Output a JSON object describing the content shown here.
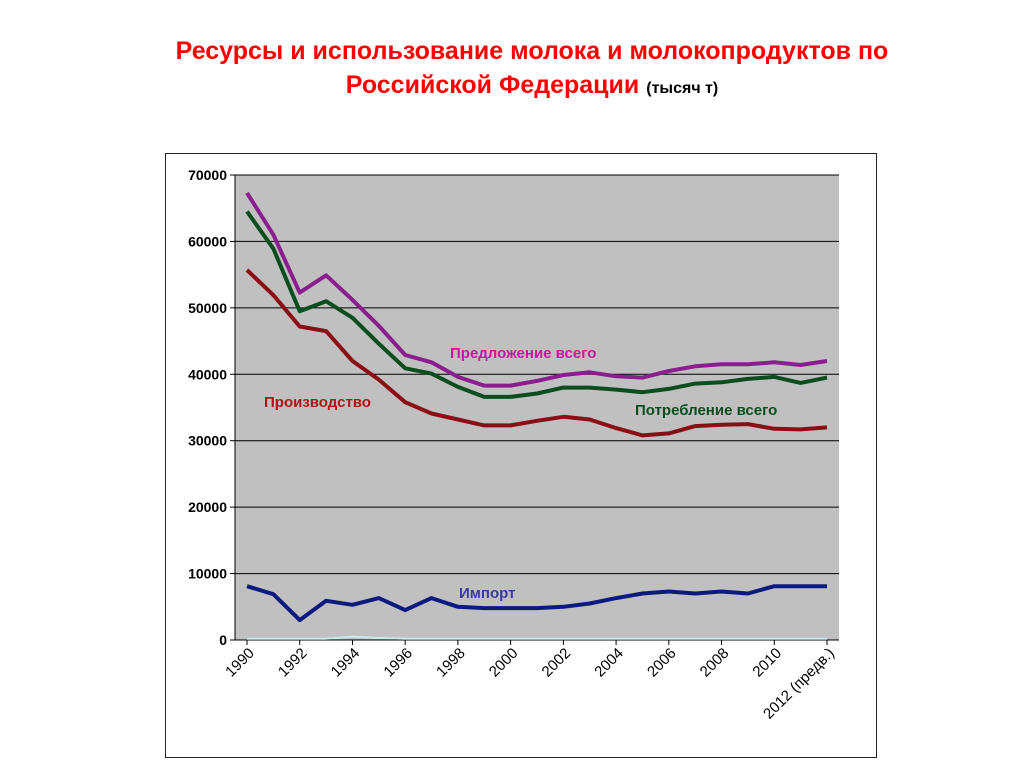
{
  "title_main": "Ресурсы и использование молока и молокопродуктов по",
  "title_line2": "Российской Федерации",
  "title_unit": "(тысяч т)",
  "colors": {
    "plot_bg": "#c0c0c0",
    "supply": "#8b1e8f",
    "consumption": "#0b4d1e",
    "production": "#8b0d16",
    "import": "#0c1a80",
    "baseline": "#c8ecec",
    "label_supply": "#c8179e",
    "label_consumption": "#0b4d1e",
    "label_production": "#b01018",
    "label_import": "#3a3aa0"
  },
  "chart_data": {
    "type": "line",
    "title": "Ресурсы и использование молока и молокопродуктов по Российской Федерации (тысяч т)",
    "xlabel": "",
    "ylabel": "",
    "ylim": [
      0,
      70000
    ],
    "yticks": [
      "0",
      "10000",
      "20000",
      "30000",
      "40000",
      "50000",
      "60000",
      "70000"
    ],
    "x_tick_labels": [
      "1990",
      "1992",
      "1994",
      "1996",
      "1998",
      "2000",
      "2002",
      "2004",
      "2006",
      "2008",
      "2010",
      "2012 (предв.)"
    ],
    "x": [
      "1990",
      "1991",
      "1992",
      "1993",
      "1994",
      "1995",
      "1996",
      "1997",
      "1998",
      "1999",
      "2000",
      "2001",
      "2002",
      "2003",
      "2004",
      "2005",
      "2006",
      "2007",
      "2008",
      "2009",
      "2010",
      "2011",
      "2012 (предв.)"
    ],
    "grid": true,
    "series": [
      {
        "name": "Предложение всего",
        "key": "supply",
        "values": [
          67300,
          61000,
          52300,
          54900,
          51200,
          47300,
          42900,
          41800,
          39600,
          38300,
          38300,
          39000,
          39900,
          40300,
          39700,
          39500,
          40500,
          41200,
          41500,
          41500,
          41800,
          41400,
          42000
        ]
      },
      {
        "name": "Потребление всего",
        "key": "consumption",
        "values": [
          64500,
          58900,
          49500,
          51000,
          48500,
          44600,
          40900,
          40100,
          38100,
          36600,
          36600,
          37100,
          38000,
          38000,
          37700,
          37300,
          37800,
          38600,
          38800,
          39300,
          39600,
          38700,
          39500
        ]
      },
      {
        "name": "Производство",
        "key": "production",
        "values": [
          55700,
          51900,
          47200,
          46500,
          42000,
          39200,
          35800,
          34100,
          33200,
          32300,
          32300,
          33000,
          33600,
          33200,
          31900,
          30800,
          31100,
          32200,
          32400,
          32500,
          31800,
          31700,
          32000
        ]
      },
      {
        "name": "Импорт",
        "key": "import",
        "values": [
          8100,
          6900,
          3000,
          5900,
          5300,
          6300,
          4500,
          6300,
          5000,
          4800,
          4800,
          4800,
          5000,
          5500,
          6300,
          7000,
          7300,
          7000,
          7300,
          7000,
          8100,
          8100,
          8100
        ]
      },
      {
        "key": "baseline",
        "values": [
          200,
          200,
          200,
          200,
          500,
          300,
          200,
          200,
          200,
          200,
          200,
          200,
          200,
          200,
          200,
          200,
          200,
          200,
          200,
          200,
          200,
          200,
          200
        ]
      }
    ]
  }
}
